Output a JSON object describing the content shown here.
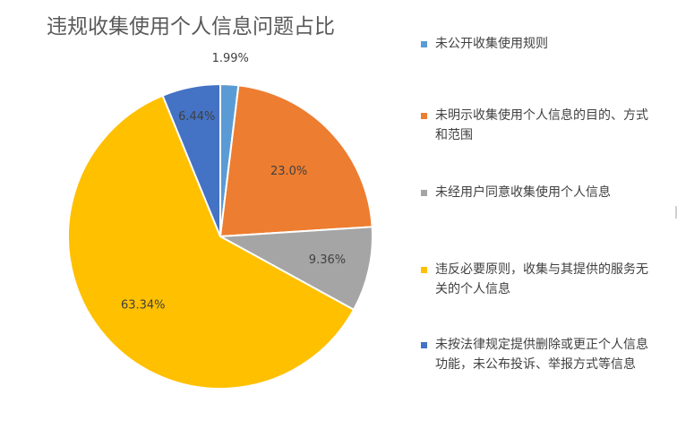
{
  "chart_data": {
    "type": "pie",
    "title": "违规收集使用个人信息问题占比",
    "legend_position": "right",
    "start_angle": "top",
    "direction": "clockwise",
    "slices": [
      {
        "label": "未公开收集使用规则",
        "value": 1.99,
        "data_label": "1.99%",
        "color": "#5B9BD5"
      },
      {
        "label": "未明示收集使用个人信息的目的、方式和范围",
        "value": 23.0,
        "data_label": "23.0%",
        "color": "#ED7D31"
      },
      {
        "label": "未经用户同意收集使用个人信息",
        "value": 9.36,
        "data_label": "9.36%",
        "color": "#A5A5A5"
      },
      {
        "label": "违反必要原则，收集与其提供的服务无关的个人信息",
        "value": 63.34,
        "data_label": "63.34%",
        "color": "#FFC000"
      },
      {
        "label": "未按法律规定提供删除或更正个人信息功能，未公布投诉、举报方式等信息",
        "value": 6.44,
        "data_label": "6.44%",
        "color": "#4472C4"
      }
    ]
  }
}
